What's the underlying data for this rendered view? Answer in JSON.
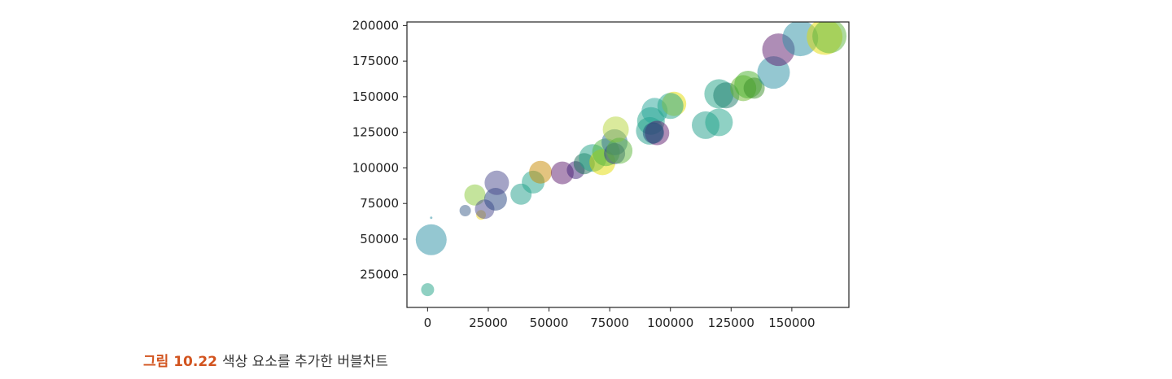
{
  "caption": {
    "figure_number": "그림 10.22",
    "text": "색상 요소를 추가한 버블차트"
  },
  "chart_data": {
    "type": "scatter",
    "title": "",
    "xlabel": "",
    "ylabel": "",
    "xlim": [
      -8500,
      173500
    ],
    "ylim": [
      2000,
      202500
    ],
    "xticks": [
      0,
      25000,
      50000,
      75000,
      100000,
      125000,
      150000
    ],
    "yticks": [
      25000,
      50000,
      75000,
      100000,
      125000,
      150000,
      175000,
      200000
    ],
    "xtick_labels": [
      "0",
      "25000",
      "50000",
      "75000",
      "100000",
      "125000",
      "150000"
    ],
    "ytick_labels": [
      "25000",
      "50000",
      "75000",
      "100000",
      "125000",
      "150000",
      "175000",
      "200000"
    ],
    "grid": false,
    "legend": "none",
    "alpha": 0.5,
    "points": [
      {
        "x": 1500,
        "y": 49500,
        "size": 19,
        "color": "#2a8fa3"
      },
      {
        "x": 0,
        "y": 14500,
        "size": 8,
        "color": "#1fa186"
      },
      {
        "x": 1500,
        "y": 65000,
        "size": 1.5,
        "color": "#2a8fa3"
      },
      {
        "x": 15500,
        "y": 70000,
        "size": 7,
        "color": "#3b5d8a"
      },
      {
        "x": 22000,
        "y": 67000,
        "size": 6,
        "color": "#f2d81a"
      },
      {
        "x": 19500,
        "y": 81000,
        "size": 13,
        "color": "#8ac93a"
      },
      {
        "x": 23500,
        "y": 71000,
        "size": 12,
        "color": "#4a4a8d"
      },
      {
        "x": 28000,
        "y": 78000,
        "size": 14,
        "color": "#26447f"
      },
      {
        "x": 28500,
        "y": 89500,
        "size": 15,
        "color": "#4a4a8d"
      },
      {
        "x": 38500,
        "y": 81500,
        "size": 13,
        "color": "#1f9d8a"
      },
      {
        "x": 43500,
        "y": 90000,
        "size": 14,
        "color": "#20a38a"
      },
      {
        "x": 46500,
        "y": 97000,
        "size": 14,
        "color": "#c88a00"
      },
      {
        "x": 55500,
        "y": 96500,
        "size": 14,
        "color": "#5d1b6e"
      },
      {
        "x": 61000,
        "y": 98500,
        "size": 11,
        "color": "#3f2178"
      },
      {
        "x": 64500,
        "y": 103000,
        "size": 13,
        "color": "#176a53"
      },
      {
        "x": 68000,
        "y": 107000,
        "size": 17,
        "color": "#1fa186"
      },
      {
        "x": 72000,
        "y": 104000,
        "size": 16,
        "color": "#e4dc00"
      },
      {
        "x": 73500,
        "y": 111000,
        "size": 17,
        "color": "#4fb83b"
      },
      {
        "x": 77000,
        "y": 118000,
        "size": 16,
        "color": "#2d6e96"
      },
      {
        "x": 77000,
        "y": 110000,
        "size": 13,
        "color": "#2a3f8e"
      },
      {
        "x": 77500,
        "y": 127000,
        "size": 16,
        "color": "#b5d53a"
      },
      {
        "x": 79000,
        "y": 112000,
        "size": 16,
        "color": "#5cb53a"
      },
      {
        "x": 91500,
        "y": 126000,
        "size": 17,
        "color": "#1f9d8a"
      },
      {
        "x": 92000,
        "y": 133000,
        "size": 17,
        "color": "#20a38a"
      },
      {
        "x": 93500,
        "y": 140000,
        "size": 16,
        "color": "#26a69a"
      },
      {
        "x": 94500,
        "y": 124500,
        "size": 15,
        "color": "#5d1b6e"
      },
      {
        "x": 93000,
        "y": 124500,
        "size": 13,
        "color": "#1a4a7a"
      },
      {
        "x": 101500,
        "y": 145000,
        "size": 15,
        "color": "#e4dc00"
      },
      {
        "x": 100000,
        "y": 143500,
        "size": 16,
        "color": "#20a38a"
      },
      {
        "x": 114500,
        "y": 130000,
        "size": 17,
        "color": "#1f9d8a"
      },
      {
        "x": 120000,
        "y": 132000,
        "size": 17,
        "color": "#20a38a"
      },
      {
        "x": 120000,
        "y": 152000,
        "size": 18,
        "color": "#1fa186"
      },
      {
        "x": 123000,
        "y": 151000,
        "size": 16,
        "color": "#1a7a6a"
      },
      {
        "x": 130000,
        "y": 156000,
        "size": 16,
        "color": "#6ab52a"
      },
      {
        "x": 132000,
        "y": 158500,
        "size": 17,
        "color": "#45b02a"
      },
      {
        "x": 134500,
        "y": 156000,
        "size": 13,
        "color": "#3c8f2a"
      },
      {
        "x": 142500,
        "y": 167000,
        "size": 20,
        "color": "#2a8fa3"
      },
      {
        "x": 144500,
        "y": 183000,
        "size": 20,
        "color": "#5d1b6e"
      },
      {
        "x": 153500,
        "y": 191000,
        "size": 22,
        "color": "#2a8fa3"
      },
      {
        "x": 163500,
        "y": 192000,
        "size": 22,
        "color": "#e4dc00"
      },
      {
        "x": 165500,
        "y": 192500,
        "size": 21,
        "color": "#5cb53a"
      }
    ]
  }
}
